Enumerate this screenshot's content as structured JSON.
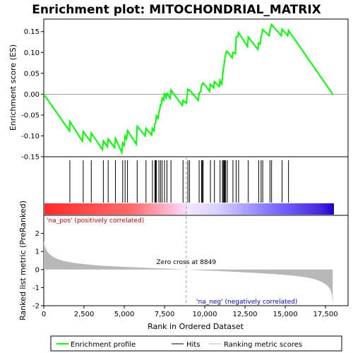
{
  "chart_data": {
    "type": "line",
    "title": "Enrichment plot: MITOCHONDRIAL_MATRIX",
    "es_panel": {
      "ylabel": "Enrichment score (ES)",
      "ylim": [
        -0.15,
        0.18
      ],
      "yticks": [
        -0.15,
        -0.1,
        -0.05,
        0.0,
        0.05,
        0.1,
        0.15
      ],
      "ytick_labels": [
        "-0.15",
        "-0.10",
        "-0.05",
        "0.00",
        "0.05",
        "0.10",
        "0.15"
      ],
      "series": [
        {
          "color": "#00ff00",
          "x": [
            0,
            1600,
            1620,
            2400,
            2450,
            2900,
            2950,
            3650,
            3700,
            3950,
            4000,
            4400,
            4450,
            4850,
            4900,
            5000,
            5050,
            5150,
            5200,
            5750,
            5800,
            6300,
            6350,
            6700,
            6750,
            6850,
            6900,
            6950,
            7000,
            7100,
            7150,
            7200,
            7250,
            7300,
            7350,
            7450,
            7500,
            7600,
            7650,
            7850,
            7900,
            8600,
            8650,
            8850,
            8950,
            9000,
            9050,
            9600,
            9650,
            9750,
            9800,
            9850,
            9900,
            10300,
            10350,
            10550,
            10600,
            10900,
            10950,
            11050,
            11100,
            11150,
            11200,
            11250,
            11300,
            11350,
            11400,
            11700,
            11750,
            11900,
            11950,
            12050,
            12100,
            12650,
            12700,
            13300,
            13350,
            13450,
            13500,
            13550,
            13600,
            14000,
            14050,
            14100,
            14150,
            14750,
            14800,
            15150,
            15200,
            17950
          ],
          "y": [
            0.0,
            -0.088,
            -0.065,
            -0.113,
            -0.09,
            -0.113,
            -0.093,
            -0.133,
            -0.112,
            -0.126,
            -0.107,
            -0.128,
            -0.106,
            -0.14,
            -0.117,
            -0.123,
            -0.1,
            -0.107,
            -0.087,
            -0.12,
            -0.077,
            -0.1,
            -0.082,
            -0.098,
            -0.082,
            -0.088,
            -0.072,
            -0.068,
            -0.052,
            -0.058,
            -0.042,
            -0.038,
            -0.025,
            -0.025,
            -0.01,
            -0.015,
            0.003,
            -0.008,
            0.002,
            -0.01,
            0.01,
            -0.027,
            -0.015,
            -0.022,
            0.012,
            0.01,
            0.01,
            -0.015,
            0.003,
            0.006,
            0.02,
            0.025,
            0.027,
            0.007,
            0.024,
            0.015,
            0.03,
            0.018,
            0.033,
            0.024,
            0.04,
            0.06,
            0.07,
            0.085,
            0.095,
            0.103,
            0.102,
            0.087,
            0.1,
            0.097,
            0.137,
            0.138,
            0.148,
            0.114,
            0.137,
            0.107,
            0.123,
            0.12,
            0.138,
            0.143,
            0.155,
            0.14,
            0.155,
            0.16,
            0.167,
            0.14,
            0.156,
            0.14,
            0.153,
            0.0
          ]
        }
      ]
    },
    "hits_panel": {
      "hit_ranks": [
        1620,
        2450,
        2950,
        3700,
        4000,
        4450,
        4900,
        5050,
        5200,
        5800,
        6350,
        6750,
        6900,
        6950,
        7000,
        7150,
        7250,
        7350,
        7500,
        7650,
        7900,
        8650,
        8950,
        9050,
        9650,
        9800,
        9850,
        9900,
        10350,
        10600,
        10950,
        11100,
        11150,
        11200,
        11250,
        11300,
        11400,
        11750,
        11950,
        12100,
        12700,
        13350,
        13500,
        13600,
        14050,
        14150,
        14800,
        15200
      ]
    },
    "ranked_panel": {
      "ylabel": "Ranked list metric (PreRanked)",
      "ylim": [
        -2,
        3
      ],
      "yticks": [
        -2,
        -1,
        0,
        1,
        2
      ],
      "ytick_labels": [
        "-2",
        "-1",
        "0",
        "1",
        "2"
      ],
      "fill_color": "#b8b8b8",
      "metric_x": [
        0,
        50,
        150,
        300,
        500,
        800,
        1200,
        1800,
        2500,
        3500,
        5000,
        6500,
        8000,
        8849,
        10000,
        11500,
        13000,
        14500,
        15500,
        16300,
        16900,
        17300,
        17600,
        17800,
        17900,
        17950
      ],
      "metric_y": [
        1.6,
        1.35,
        1.1,
        0.9,
        0.75,
        0.6,
        0.48,
        0.38,
        0.3,
        0.22,
        0.15,
        0.09,
        0.04,
        0.0,
        -0.05,
        -0.11,
        -0.18,
        -0.26,
        -0.34,
        -0.43,
        -0.55,
        -0.7,
        -0.88,
        -1.1,
        -1.4,
        -1.9
      ]
    },
    "xaxis": {
      "label": "Rank in Ordered Dataset",
      "xlim": [
        0,
        18900
      ],
      "ticks": [
        0,
        2500,
        5000,
        7500,
        10000,
        12500,
        15000,
        17500
      ],
      "tick_labels": [
        "0",
        "2,500",
        "5,000",
        "7,500",
        "10,000",
        "12,500",
        "15,000",
        "17,500"
      ]
    },
    "zero_cross": {
      "x": 8849,
      "label": "Zero cross at 8849"
    },
    "annotations": {
      "pos": "'na_pos' (positively correlated)",
      "neg": "'na_neg' (negatively correlated)"
    },
    "legend": {
      "placement": "bottom",
      "items": [
        {
          "label": "Enrichment profile",
          "color": "#00ff00"
        },
        {
          "label": "Hits",
          "color": "#000000"
        },
        {
          "label": "Ranking metric scores",
          "color": "#b8b8b8"
        }
      ]
    },
    "colors": {
      "pos_text": "#cc0000",
      "neg_text": "#0000cc",
      "zero_line": "#a0a0a0"
    }
  }
}
